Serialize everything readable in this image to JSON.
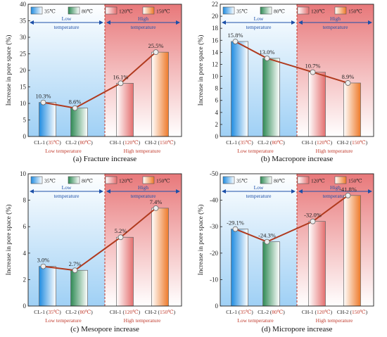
{
  "legend": {
    "items": [
      "35℃",
      "80℃",
      "120℃",
      "150℃"
    ],
    "colors": [
      "#4aa7e8",
      "#52a574",
      "#e98a8a",
      "#f08a3a"
    ]
  },
  "zones": {
    "low": "Low temperature",
    "high": "High temperature"
  },
  "group_labels": {
    "low": "Low temperature",
    "high": "High temperature"
  },
  "line_color": "#b03a1e",
  "chart_data": [
    {
      "type": "bar",
      "panel": "a",
      "caption": "(a) Fracture increase",
      "ylabel": "Increase in pore space (%)",
      "ylim": [
        0,
        40
      ],
      "yticks": [
        0,
        5,
        10,
        15,
        20,
        25,
        30,
        35,
        40
      ],
      "categories": [
        [
          "CL-1",
          "35℃"
        ],
        [
          "CL-2",
          "80℃"
        ],
        [
          "CH-1",
          "120℃"
        ],
        [
          "CH-2",
          "150℃"
        ]
      ],
      "values": [
        10.3,
        8.6,
        16.1,
        25.5
      ],
      "data_labels": [
        "10.3%",
        "8.6%",
        "16.1%",
        "25.5%"
      ],
      "legend_position": "top"
    },
    {
      "type": "bar",
      "panel": "b",
      "caption": "(b) Macropore  increase",
      "ylabel": "Increase in pore space (%)",
      "ylim": [
        0,
        22
      ],
      "yticks": [
        0,
        2,
        4,
        6,
        8,
        10,
        12,
        14,
        16,
        18,
        20,
        22
      ],
      "categories": [
        [
          "CL-1",
          "35℃"
        ],
        [
          "CL-2",
          "80℃"
        ],
        [
          "CH-1",
          "120℃"
        ],
        [
          "CH-2",
          "150℃"
        ]
      ],
      "values": [
        15.8,
        13.0,
        10.7,
        8.9
      ],
      "data_labels": [
        "15.8%",
        "13.0%",
        "10.7%",
        "8.9%"
      ],
      "legend_position": "top"
    },
    {
      "type": "bar",
      "panel": "c",
      "caption": "(c) Mesopore  increase",
      "ylabel": "Increase in pore space (%)",
      "ylim": [
        0,
        10
      ],
      "yticks": [
        0,
        2,
        4,
        6,
        8,
        10
      ],
      "categories": [
        [
          "CL-1",
          "35℃"
        ],
        [
          "CL-2",
          "80℃"
        ],
        [
          "CH-1",
          "120℃"
        ],
        [
          "CH-2",
          "150℃"
        ]
      ],
      "values": [
        3.0,
        2.7,
        5.2,
        7.4
      ],
      "data_labels": [
        "3.0%",
        "2.7%",
        "5.2%",
        "7.4%"
      ],
      "legend_position": "top"
    },
    {
      "type": "bar",
      "panel": "d",
      "caption": "(d) Micropore increase",
      "ylabel": "Increase in pore space (%)",
      "ylim": [
        0,
        -50
      ],
      "yticks": [
        0,
        -10,
        -20,
        -30,
        -40,
        -50
      ],
      "categories": [
        [
          "CL-1",
          "35℃"
        ],
        [
          "CL-2",
          "80℃"
        ],
        [
          "CH-1",
          "120℃"
        ],
        [
          "CH-2",
          "150℃"
        ]
      ],
      "values": [
        -29.1,
        -24.3,
        -32.0,
        -41.8
      ],
      "data_labels": [
        "-29.1%",
        "-24.3%",
        "-32.0%",
        "-41.8%"
      ],
      "legend_position": "top"
    }
  ]
}
